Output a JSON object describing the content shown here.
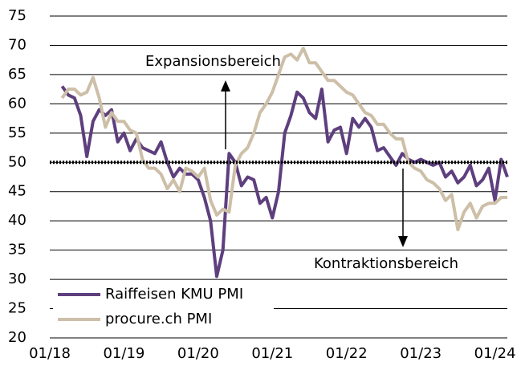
{
  "chart_data": {
    "type": "line",
    "x": [
      "03/18",
      "04/18",
      "05/18",
      "06/18",
      "07/18",
      "08/18",
      "09/18",
      "10/18",
      "11/18",
      "12/18",
      "01/19",
      "02/19",
      "03/19",
      "04/19",
      "05/19",
      "06/19",
      "07/19",
      "08/19",
      "09/19",
      "10/19",
      "11/19",
      "12/19",
      "01/20",
      "02/20",
      "03/20",
      "04/20",
      "05/20",
      "06/20",
      "07/20",
      "08/20",
      "09/20",
      "10/20",
      "11/20",
      "12/20",
      "01/21",
      "02/21",
      "03/21",
      "04/21",
      "05/21",
      "06/21",
      "07/21",
      "08/21",
      "09/21",
      "10/21",
      "11/21",
      "12/21",
      "01/22",
      "02/22",
      "03/22",
      "04/22",
      "05/22",
      "06/22",
      "07/22",
      "08/22",
      "09/22",
      "10/22",
      "11/22",
      "12/22",
      "01/23",
      "02/23",
      "03/23",
      "04/23",
      "05/23",
      "06/23",
      "07/23",
      "08/23",
      "09/23",
      "10/23",
      "11/23",
      "12/23",
      "01/24",
      "02/24",
      "03/24"
    ],
    "series": [
      {
        "name": "Raiffeisen KMU PMI",
        "color": "#5e3f7e",
        "values": [
          63,
          61.5,
          61,
          58,
          51,
          57,
          59,
          58,
          59,
          53.5,
          55,
          52,
          54,
          52.5,
          52,
          51.5,
          53.5,
          50,
          47.5,
          49,
          48,
          48,
          47,
          44,
          40,
          30.5,
          35,
          51.5,
          50,
          46,
          47.5,
          47,
          43,
          44,
          40.5,
          45,
          55,
          58,
          62,
          61,
          58.5,
          57.5,
          62.5,
          53.5,
          55.5,
          56,
          51.5,
          57.5,
          56,
          57.5,
          56,
          52,
          52.5,
          51,
          49.5,
          51.5,
          50.5,
          50,
          50.5,
          50,
          49.5,
          50,
          47.5,
          48.5,
          46.5,
          47.5,
          49.5,
          46,
          47,
          49,
          43.5,
          50.5,
          47.5
        ]
      },
      {
        "name": "procure.ch PMI",
        "color": "#cdbfa8",
        "values": [
          61,
          62.5,
          62.5,
          61.5,
          62,
          64.5,
          61,
          56,
          58.5,
          57,
          57,
          55.5,
          55,
          50.5,
          49,
          49,
          48,
          45.5,
          47,
          45,
          49,
          48.5,
          47.5,
          49,
          43.5,
          41,
          42,
          41.5,
          49.5,
          51.5,
          52.5,
          55,
          58.5,
          60,
          62,
          65,
          68,
          68.5,
          67.5,
          69.5,
          67,
          67,
          65.5,
          64,
          64,
          63,
          62,
          61.5,
          60,
          58.5,
          58,
          56.5,
          56.5,
          55,
          54,
          54,
          50,
          49,
          48.5,
          47,
          46.5,
          45.5,
          43.5,
          44.5,
          38.5,
          41.5,
          43,
          40.5,
          42.5,
          43,
          43,
          44,
          44
        ]
      }
    ],
    "xlim": [
      "01/18",
      "03/24"
    ],
    "xticks": [
      "01/18",
      "01/19",
      "01/20",
      "01/21",
      "01/22",
      "01/23",
      "01/24"
    ],
    "ylim": [
      20,
      75
    ],
    "yticks": [
      20,
      25,
      30,
      35,
      40,
      45,
      50,
      55,
      60,
      65,
      70,
      75
    ],
    "grid": true,
    "reference_line": 50,
    "annotations": [
      "Expansionsbereich",
      "Kontraktionsbereich"
    ],
    "legend": "lower-left"
  }
}
